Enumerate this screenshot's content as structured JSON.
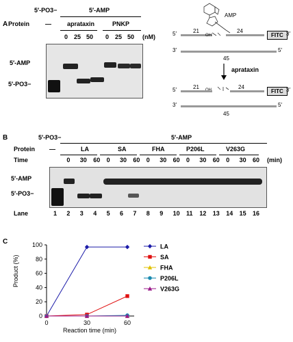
{
  "panelA": {
    "letter": "A",
    "header_left": "5′-PO3−",
    "header_right": "5′-AMP",
    "protein_label": "Protein",
    "dash": "—",
    "group1": "aprataxin",
    "group2": "PNKP",
    "concs": [
      "0",
      "25",
      "50",
      "0",
      "25",
      "50"
    ],
    "unit": "(nM)",
    "band_top": "5′-AMP",
    "band_bottom": "5′-PO3−",
    "schematic": {
      "amp_label": "AMP",
      "top5": "5′",
      "top3": "3′",
      "num21": "21",
      "num24": "24",
      "num45": "45",
      "fitc": "FITC",
      "bot5": "5′",
      "bot3": "3′",
      "arrow_label": "aprataxin",
      "lower_top5": "5′",
      "lower_top3": "3′",
      "lower_num21": "21",
      "lower_num24": "24",
      "lower_num45": "45",
      "lower_fitc": "FITC",
      "lower_bot5": "5′",
      "lower_bot3": "3′"
    }
  },
  "panelB": {
    "letter": "B",
    "header_left": "5′-PO3−",
    "header_right": "5′-AMP",
    "protein_label": "Protein",
    "dash": "—",
    "groups": [
      "LA",
      "SA",
      "FHA",
      "P206L",
      "V263G"
    ],
    "time_label": "Time",
    "times": [
      "0",
      "30",
      "60",
      "0",
      "30",
      "60",
      "0",
      "30",
      "60",
      "0",
      "30",
      "60",
      "0",
      "30",
      "60"
    ],
    "unit": "(min)",
    "band_top": "5′-AMP",
    "band_bottom": "5′-PO3−",
    "lane_label": "Lane",
    "lanes": [
      "1",
      "2",
      "3",
      "4",
      "5",
      "6",
      "7",
      "8",
      "9",
      "10",
      "11",
      "12",
      "13",
      "14",
      "15",
      "16"
    ]
  },
  "panelC": {
    "letter": "C",
    "chart_data": {
      "type": "line",
      "x": [
        0,
        30,
        60
      ],
      "xlabel": "Reaction time (min)",
      "ylabel": "Product (%)",
      "xlim": [
        0,
        60
      ],
      "ylim": [
        0,
        100
      ],
      "xticks": [
        "0",
        "30",
        "60"
      ],
      "yticks": [
        "0",
        "20",
        "40",
        "60",
        "80",
        "100"
      ],
      "legend_position": "right",
      "series": [
        {
          "name": "LA",
          "values": [
            0,
            97,
            97
          ],
          "color": "#1a1aa8",
          "marker": "diamond"
        },
        {
          "name": "SA",
          "values": [
            0,
            2,
            28
          ],
          "color": "#e01010",
          "marker": "square"
        },
        {
          "name": "FHA",
          "values": [
            0,
            0,
            0
          ],
          "color": "#e0c000",
          "marker": "triangle"
        },
        {
          "name": "P206L",
          "values": [
            0,
            0,
            1
          ],
          "color": "#1a8ab0",
          "marker": "circle"
        },
        {
          "name": "V263G",
          "values": [
            0,
            0,
            0
          ],
          "color": "#9a1a8a",
          "marker": "triangle"
        }
      ]
    }
  }
}
